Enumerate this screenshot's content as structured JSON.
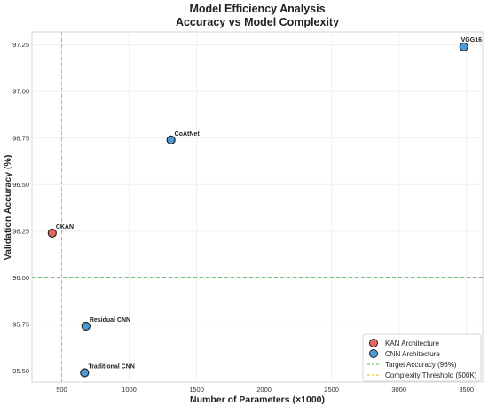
{
  "chart_data": {
    "type": "scatter",
    "title": "Model Efficiency Analysis",
    "subtitle": "Accuracy vs Model Complexity",
    "xlabel": "Number of Parameters (×1000)",
    "ylabel": "Validation Accuracy (%)",
    "xlim": [
      280,
      3620
    ],
    "ylim": [
      95.44,
      97.32
    ],
    "xticks": [
      500,
      1000,
      1500,
      2000,
      2500,
      3000,
      3500
    ],
    "yticks": [
      95.5,
      95.75,
      96.0,
      96.25,
      96.5,
      96.75,
      97.0,
      97.25
    ],
    "xtick_labels": [
      "500",
      "1000",
      "1500",
      "2000",
      "2500",
      "3000",
      "3500"
    ],
    "ytick_labels": [
      "95.50",
      "95.75",
      "96.00",
      "96.25",
      "96.50",
      "96.75",
      "97.00",
      "97.25"
    ],
    "grid": true,
    "legend_position": "bottom-right",
    "series": [
      {
        "name": "KAN Architecture",
        "color": "#e8685e",
        "points": [
          {
            "x": 430,
            "y": 96.24,
            "label": "CKAN"
          }
        ]
      },
      {
        "name": "CNN Architecture",
        "color": "#4d9bd6",
        "points": [
          {
            "x": 3480,
            "y": 97.24,
            "label": "VGG16"
          },
          {
            "x": 1310,
            "y": 96.74,
            "label": "CoAtNet"
          },
          {
            "x": 680,
            "y": 95.74,
            "label": "Residual CNN"
          },
          {
            "x": 670,
            "y": 95.49,
            "label": "Traditional CNN"
          }
        ]
      }
    ],
    "reference_lines": [
      {
        "orientation": "horizontal",
        "value": 96.0,
        "name": "Target Accuracy (96%)",
        "color": "#5cb85c"
      },
      {
        "orientation": "vertical",
        "value": 500,
        "name": "Complexity Threshold (500K)",
        "color": "#f0b400"
      }
    ]
  }
}
